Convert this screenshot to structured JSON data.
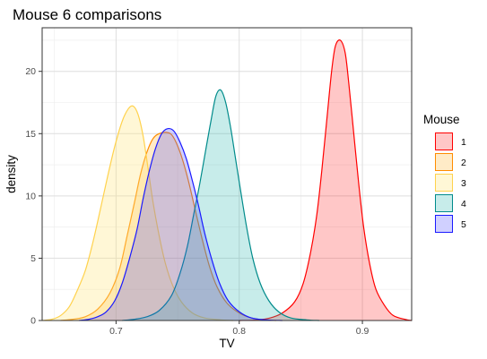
{
  "chart_data": {
    "type": "area",
    "title": "Mouse 6 comparisons",
    "xlabel": "TV",
    "ylabel": "density",
    "xlim": [
      0.64,
      0.94
    ],
    "ylim": [
      0,
      23.5
    ],
    "x_ticks": [
      0.7,
      0.8,
      0.9
    ],
    "x_tick_labels": [
      "0.7",
      "0.8",
      "0.9"
    ],
    "y_ticks": [
      0,
      5,
      10,
      15,
      20
    ],
    "y_tick_labels": [
      "0",
      "5",
      "10",
      "15",
      "20"
    ],
    "grid": true,
    "legend": {
      "title": "Mouse",
      "position": "right"
    },
    "series": [
      {
        "name": "1",
        "stroke": "#ff0000",
        "fill": "#ff0000",
        "fill_opacity": 0.22,
        "points": [
          [
            0.8,
            0
          ],
          [
            0.815,
            0.05
          ],
          [
            0.825,
            0.2
          ],
          [
            0.835,
            0.6
          ],
          [
            0.845,
            1.5
          ],
          [
            0.852,
            3
          ],
          [
            0.858,
            5.5
          ],
          [
            0.863,
            8.5
          ],
          [
            0.867,
            12
          ],
          [
            0.871,
            16
          ],
          [
            0.875,
            20
          ],
          [
            0.878,
            22
          ],
          [
            0.882,
            22.5
          ],
          [
            0.886,
            21.5
          ],
          [
            0.889,
            19
          ],
          [
            0.893,
            15
          ],
          [
            0.897,
            11
          ],
          [
            0.901,
            7.5
          ],
          [
            0.906,
            4.5
          ],
          [
            0.911,
            2.5
          ],
          [
            0.918,
            1.2
          ],
          [
            0.925,
            0.4
          ],
          [
            0.935,
            0.08
          ],
          [
            0.94,
            0
          ]
        ]
      },
      {
        "name": "2",
        "stroke": "#ff8c00",
        "fill": "#ffa500",
        "fill_opacity": 0.22,
        "points": [
          [
            0.655,
            0
          ],
          [
            0.665,
            0.1
          ],
          [
            0.675,
            0.3
          ],
          [
            0.685,
            0.9
          ],
          [
            0.695,
            2.2
          ],
          [
            0.703,
            4.2
          ],
          [
            0.709,
            6.8
          ],
          [
            0.715,
            9.5
          ],
          [
            0.72,
            11.8
          ],
          [
            0.725,
            13.5
          ],
          [
            0.73,
            14.6
          ],
          [
            0.735,
            15.0
          ],
          [
            0.741,
            15.1
          ],
          [
            0.746,
            14.8
          ],
          [
            0.752,
            13.5
          ],
          [
            0.758,
            11.5
          ],
          [
            0.764,
            9
          ],
          [
            0.77,
            6.5
          ],
          [
            0.776,
            4.3
          ],
          [
            0.782,
            2.7
          ],
          [
            0.79,
            1.4
          ],
          [
            0.8,
            0.6
          ],
          [
            0.81,
            0.2
          ],
          [
            0.82,
            0.05
          ],
          [
            0.83,
            0
          ]
        ]
      },
      {
        "name": "3",
        "stroke": "#ffd24d",
        "fill": "#ffe680",
        "fill_opacity": 0.32,
        "points": [
          [
            0.64,
            0
          ],
          [
            0.648,
            0.1
          ],
          [
            0.655,
            0.4
          ],
          [
            0.662,
            1.1
          ],
          [
            0.668,
            2.3
          ],
          [
            0.675,
            4
          ],
          [
            0.681,
            6.2
          ],
          [
            0.687,
            8.8
          ],
          [
            0.693,
            11.5
          ],
          [
            0.699,
            14
          ],
          [
            0.705,
            16
          ],
          [
            0.71,
            17
          ],
          [
            0.714,
            17.2
          ],
          [
            0.718,
            16.5
          ],
          [
            0.722,
            14.8
          ],
          [
            0.726,
            12.2
          ],
          [
            0.73,
            9.5
          ],
          [
            0.735,
            6.8
          ],
          [
            0.74,
            4.6
          ],
          [
            0.746,
            2.8
          ],
          [
            0.753,
            1.5
          ],
          [
            0.762,
            0.6
          ],
          [
            0.772,
            0.2
          ],
          [
            0.785,
            0.05
          ],
          [
            0.795,
            0
          ]
        ]
      },
      {
        "name": "4",
        "stroke": "#008b8b",
        "fill": "#20b2aa",
        "fill_opacity": 0.25,
        "points": [
          [
            0.705,
            0
          ],
          [
            0.715,
            0.1
          ],
          [
            0.725,
            0.3
          ],
          [
            0.735,
            0.8
          ],
          [
            0.745,
            2
          ],
          [
            0.752,
            3.8
          ],
          [
            0.758,
            6
          ],
          [
            0.763,
            8.5
          ],
          [
            0.768,
            11
          ],
          [
            0.773,
            13.8
          ],
          [
            0.777,
            16
          ],
          [
            0.781,
            18
          ],
          [
            0.785,
            18.5
          ],
          [
            0.789,
            17.5
          ],
          [
            0.793,
            15.5
          ],
          [
            0.797,
            13
          ],
          [
            0.801,
            10.5
          ],
          [
            0.806,
            7.5
          ],
          [
            0.811,
            5
          ],
          [
            0.817,
            3
          ],
          [
            0.824,
            1.6
          ],
          [
            0.832,
            0.7
          ],
          [
            0.842,
            0.2
          ],
          [
            0.855,
            0.05
          ],
          [
            0.865,
            0
          ]
        ]
      },
      {
        "name": "5",
        "stroke": "#1a1aff",
        "fill": "#4444ff",
        "fill_opacity": 0.25,
        "points": [
          [
            0.67,
            0
          ],
          [
            0.678,
            0.1
          ],
          [
            0.685,
            0.3
          ],
          [
            0.692,
            0.7
          ],
          [
            0.699,
            1.6
          ],
          [
            0.705,
            3
          ],
          [
            0.711,
            5
          ],
          [
            0.717,
            7.3
          ],
          [
            0.722,
            9.8
          ],
          [
            0.727,
            12
          ],
          [
            0.732,
            13.8
          ],
          [
            0.737,
            15
          ],
          [
            0.742,
            15.4
          ],
          [
            0.747,
            15.2
          ],
          [
            0.752,
            14.3
          ],
          [
            0.757,
            13
          ],
          [
            0.762,
            11.2
          ],
          [
            0.767,
            9.2
          ],
          [
            0.772,
            7
          ],
          [
            0.778,
            4.8
          ],
          [
            0.784,
            3
          ],
          [
            0.791,
            1.6
          ],
          [
            0.8,
            0.7
          ],
          [
            0.81,
            0.2
          ],
          [
            0.822,
            0.05
          ],
          [
            0.835,
            0
          ]
        ]
      }
    ]
  }
}
